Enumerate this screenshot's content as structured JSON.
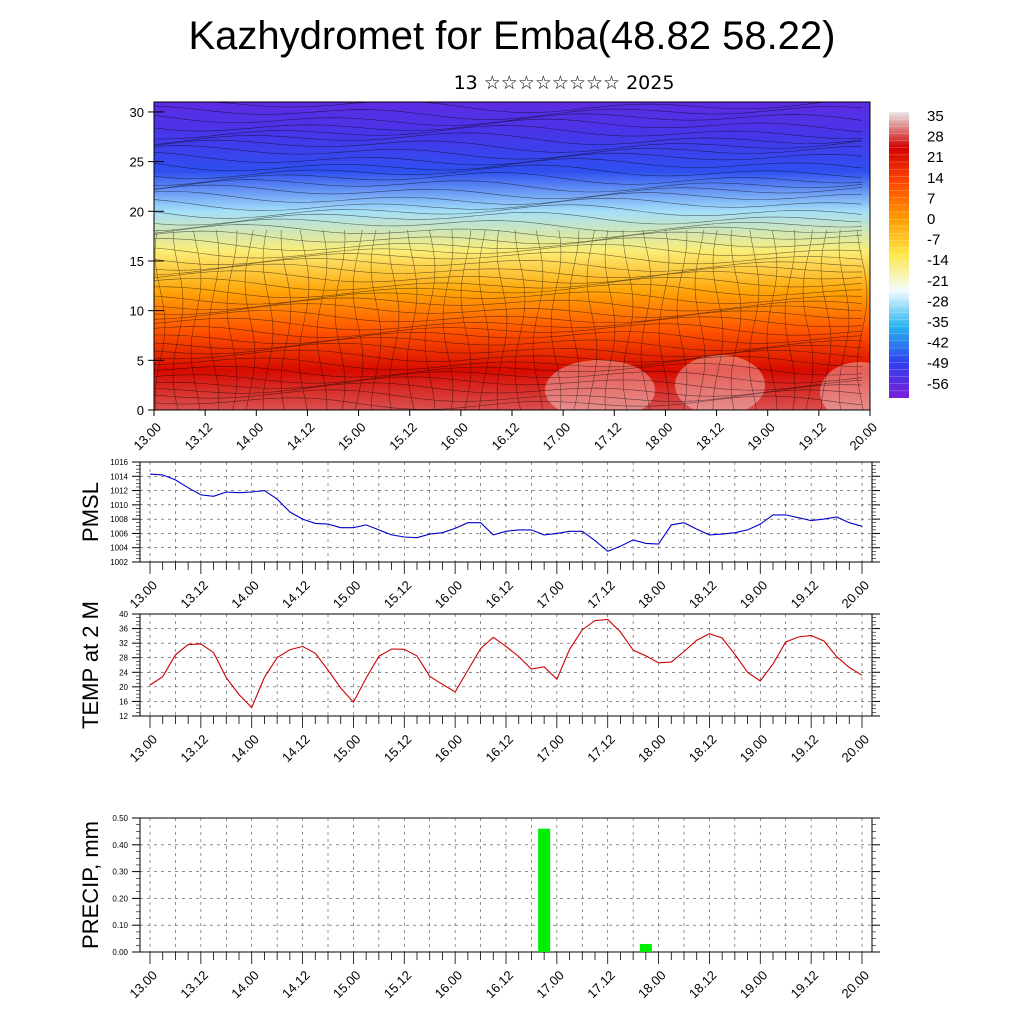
{
  "title": "Kazhydromet for Emba(48.82 58.22)",
  "subtitle": "13 ☆☆☆☆☆☆☆☆ 2025",
  "time_labels": [
    "13.00",
    "13.12",
    "14.00",
    "14.12",
    "15.00",
    "15.12",
    "16.00",
    "16.12",
    "17.00",
    "17.12",
    "18.00",
    "18.12",
    "19.00",
    "19.12",
    "20.00"
  ],
  "chart_data": [
    {
      "type": "heatmap",
      "title": "",
      "xlabel": "",
      "ylabel": "",
      "x_ticks": [
        "13.00",
        "13.12",
        "14.00",
        "14.12",
        "15.00",
        "15.12",
        "16.00",
        "16.12",
        "17.00",
        "17.12",
        "18.00",
        "18.12",
        "19.00",
        "19.12",
        "20.00"
      ],
      "y_ticks": [
        0,
        5,
        10,
        15,
        20,
        25,
        30
      ],
      "ylim": [
        0,
        31
      ],
      "colorbar": {
        "labels": [
          35,
          28,
          21,
          14,
          7,
          0,
          -7,
          -14,
          -21,
          -28,
          -35,
          -42,
          -49,
          -56
        ],
        "range": [
          -60,
          38
        ],
        "colors": [
          "#e8e8e8",
          "#d10000",
          "#ff4a00",
          "#ff9d00",
          "#ffe84a",
          "#f2fbff",
          "#28b4ef",
          "#2f3ff0",
          "#7b1fd8"
        ]
      },
      "temperature_profile": [
        {
          "level": 0,
          "value": 30
        },
        {
          "level": 4,
          "value": 24
        },
        {
          "level": 8,
          "value": 12
        },
        {
          "level": 12,
          "value": 0
        },
        {
          "level": 16,
          "value": -14
        },
        {
          "level": 20,
          "value": -28
        },
        {
          "level": 24,
          "value": -46
        },
        {
          "level": 28,
          "value": -52
        },
        {
          "level": 31,
          "value": -55
        }
      ],
      "overlay": "wind streamlines"
    },
    {
      "type": "line",
      "ylabel": "PMSL",
      "ylim": [
        1002,
        1016
      ],
      "y_ticks": [
        1002,
        1004,
        1006,
        1008,
        1010,
        1012,
        1014,
        1016
      ],
      "grid": true,
      "series": [
        {
          "color": "#0000cc",
          "x": [
            0,
            3,
            6,
            9,
            12,
            15,
            18,
            21,
            24,
            27,
            30,
            33,
            36,
            39,
            42,
            45,
            48,
            51,
            54,
            57,
            60,
            63,
            66,
            69,
            72,
            75,
            78,
            81,
            84,
            87,
            90,
            93,
            96,
            99,
            102,
            105,
            108,
            111,
            114,
            117,
            120,
            123,
            126,
            129,
            132,
            135,
            138,
            141,
            144,
            147,
            150,
            153,
            156,
            159,
            162,
            165,
            168
          ],
          "values": [
            1014.3,
            1014.2,
            1013.5,
            1012.4,
            1011.4,
            1011.2,
            1011.8,
            1011.7,
            1011.8,
            1012.0,
            1010.8,
            1009.0,
            1008.0,
            1007.4,
            1007.3,
            1006.8,
            1006.8,
            1007.2,
            1006.5,
            1005.8,
            1005.5,
            1005.4,
            1005.9,
            1006.1,
            1006.7,
            1007.5,
            1007.5,
            1005.8,
            1006.3,
            1006.5,
            1006.5,
            1005.8,
            1006.0,
            1006.3,
            1006.3,
            1005.0,
            1003.5,
            1004.2,
            1005.1,
            1004.6,
            1004.5,
            1007.2,
            1007.5,
            1006.6,
            1005.8,
            1005.9,
            1006.1,
            1006.5,
            1007.3,
            1008.6,
            1008.6,
            1008.2,
            1007.8,
            1008.0,
            1008.3,
            1007.5,
            1007.0
          ]
        }
      ]
    },
    {
      "type": "line",
      "ylabel": "TEMP at 2 M",
      "ylim": [
        12,
        40
      ],
      "y_ticks": [
        12,
        16,
        20,
        24,
        28,
        32,
        36,
        40
      ],
      "grid": true,
      "series": [
        {
          "color": "#cc0000",
          "x": [
            0,
            3,
            6,
            9,
            12,
            15,
            18,
            21,
            24,
            27,
            30,
            33,
            36,
            39,
            42,
            45,
            48,
            51,
            54,
            57,
            60,
            63,
            66,
            69,
            72,
            75,
            78,
            81,
            84,
            87,
            90,
            93,
            96,
            99,
            102,
            105,
            108,
            111,
            114,
            117,
            120,
            123,
            126,
            129,
            132,
            135,
            138,
            141,
            144,
            147,
            150,
            153,
            156,
            159,
            162,
            165,
            168
          ],
          "values": [
            20.5,
            22.8,
            28.8,
            31.6,
            31.8,
            29.4,
            22.5,
            17.9,
            14.3,
            22.6,
            28.0,
            30.2,
            31.1,
            29.2,
            24.6,
            19.7,
            15.8,
            22.4,
            28.4,
            30.4,
            30.3,
            28.5,
            22.9,
            20.7,
            18.6,
            24.6,
            30.5,
            33.6,
            31.1,
            28.3,
            24.9,
            25.5,
            22.1,
            30.3,
            35.7,
            38.2,
            38.5,
            35.1,
            30.1,
            28.5,
            26.6,
            26.8,
            29.7,
            32.8,
            34.6,
            33.4,
            28.9,
            24.0,
            21.6,
            26.3,
            32.3,
            33.7,
            34.1,
            32.6,
            28.3,
            25.3,
            23.2
          ]
        }
      ]
    },
    {
      "type": "bar",
      "ylabel": "PRECIP, mm",
      "ylim": [
        0,
        0.5
      ],
      "y_ticks": [
        "0.00",
        "0.10",
        "0.20",
        "0.30",
        "0.40",
        "0.50"
      ],
      "grid": true,
      "bars": [
        {
          "hour": 93,
          "value": 0.46,
          "color": "#00ee00"
        },
        {
          "hour": 117,
          "value": 0.03,
          "color": "#00ee00"
        }
      ]
    }
  ]
}
